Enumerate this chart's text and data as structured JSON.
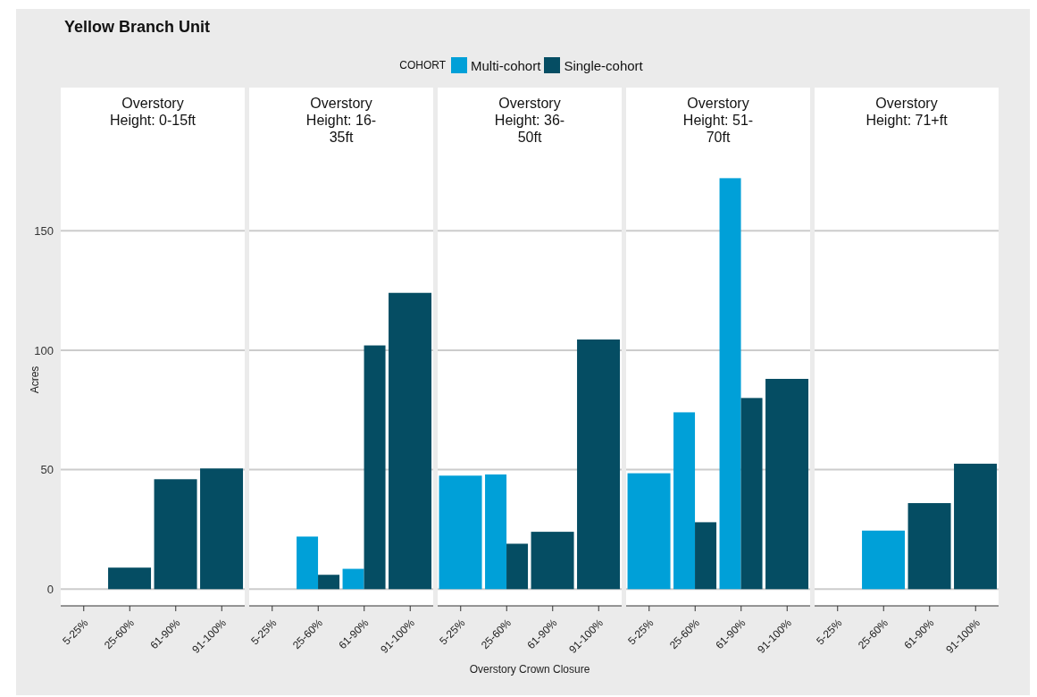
{
  "chart_data": [
    {
      "type": "bar",
      "title": "Overstory Height: 0-15ft",
      "annotations": [
        "Yellow Branch Unit"
      ],
      "legend_title": "COHORT",
      "legend": "top",
      "ylabel": "Acres",
      "categories": [
        "5-25%",
        "25-60%",
        "61-90%",
        "91-100%"
      ],
      "series": [
        {
          "name": "Multi-cohort",
          "color": "#00a0d8",
          "values": [
            null,
            null,
            null,
            null
          ]
        },
        {
          "name": "Single-cohort",
          "color": "#054d63",
          "values": [
            null,
            9,
            46,
            50.5
          ]
        }
      ],
      "ylim": [
        -7,
        180
      ],
      "yticks": [
        0,
        50,
        100,
        150
      ],
      "grid": "y"
    },
    {
      "type": "bar",
      "title": "Overstory Height: 16-35ft",
      "categories": [
        "5-25%",
        "25-60%",
        "61-90%",
        "91-100%"
      ],
      "series": [
        {
          "color": "#00a0d8",
          "values": [
            null,
            22,
            8.5,
            null
          ]
        },
        {
          "color": "#054d63",
          "values": [
            null,
            6,
            102,
            124
          ]
        }
      ],
      "ylim": [
        -7,
        180
      ],
      "yticks": [
        0,
        50,
        100,
        150
      ],
      "grid": "y",
      "tick_labels": "x"
    },
    {
      "type": "bar",
      "title": "Overstory Height: 36-50ft",
      "xlabel": "Overstory Crown Closure",
      "categories": [
        "5-25%",
        "25-60%",
        "61-90%",
        "91-100%"
      ],
      "series": [
        {
          "color": "#00a0d8",
          "values": [
            47.5,
            48,
            null,
            null
          ]
        },
        {
          "color": "#054d63",
          "values": [
            null,
            19,
            24,
            104.5
          ]
        }
      ],
      "ylim": [
        -7,
        180
      ],
      "yticks": [
        0,
        50,
        100,
        150
      ],
      "grid": "y",
      "tick_labels": "x"
    },
    {
      "type": "bar",
      "title": "Overstory Height: 51-70ft",
      "categories": [
        "5-25%",
        "25-60%",
        "61-90%",
        "91-100%"
      ],
      "series": [
        {
          "color": "#00a0d8",
          "values": [
            48.5,
            74,
            172,
            null
          ]
        },
        {
          "color": "#054d63",
          "values": [
            null,
            28,
            80,
            88
          ]
        }
      ],
      "ylim": [
        -7,
        180
      ],
      "yticks": [
        0,
        50,
        100,
        150
      ],
      "grid": "y",
      "tick_labels": "x"
    },
    {
      "type": "bar",
      "title": "Overstory Height: 71+ft",
      "categories": [
        "5-25%",
        "25-60%",
        "61-90%",
        "91-100%"
      ],
      "series": [
        {
          "color": "#00a0d8",
          "values": [
            null,
            24.5,
            null,
            null
          ]
        },
        {
          "color": "#054d63",
          "values": [
            null,
            null,
            36,
            52.5
          ]
        }
      ],
      "ylim": [
        -7,
        180
      ],
      "yticks": [
        0,
        50,
        100,
        150
      ],
      "grid": "y",
      "tick_labels": "x"
    }
  ]
}
